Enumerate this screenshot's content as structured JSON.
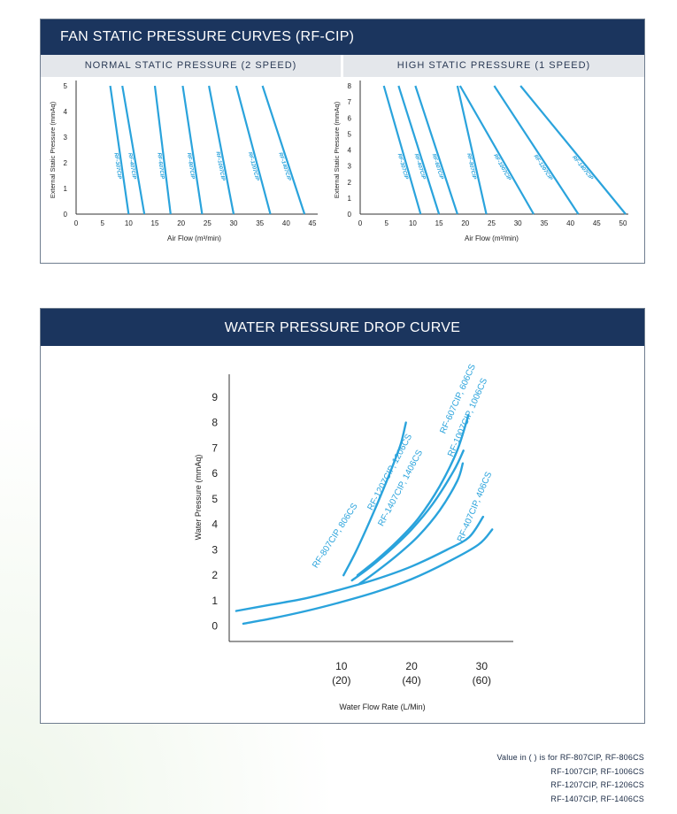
{
  "fan_panel": {
    "title": "FAN STATIC PRESSURE CURVES (RF-CIP)",
    "normal_subtitle": "NORMAL STATIC PRESSURE (2 SPEED)",
    "high_subtitle": "HIGH STATIC PRESSURE (1 SPEED)"
  },
  "water_panel": {
    "title": "WATER PRESSURE DROP CURVE"
  },
  "footnotes": [
    "Value in (   ) is for RF-807CIP, RF-806CS",
    "RF-1007CIP, RF-1006CS",
    "RF-1207CIP, RF-1206CS",
    "RF-1407CIP, RF-1406CS"
  ],
  "colors": {
    "curve": "#2aa3dc",
    "header": "#1b355e",
    "axis": "#333333"
  },
  "chart_data": [
    {
      "type": "line",
      "title": "NORMAL STATIC PRESSURE (2 SPEED)",
      "xlabel": "Air Flow (m³/min)",
      "ylabel": "External Static Pressure (mmAq)",
      "xlim": [
        0,
        45
      ],
      "ylim": [
        0,
        5
      ],
      "xticks": [
        "0",
        "5",
        "10",
        "15",
        "20",
        "25",
        "30",
        "35",
        "40",
        "45"
      ],
      "yticks": [
        "0",
        "1",
        "2",
        "3",
        "4",
        "5"
      ],
      "grid": false,
      "series": [
        {
          "name": "RF-307CIP",
          "x": [
            6.5,
            10
          ],
          "y": [
            5,
            0
          ]
        },
        {
          "name": "RF-407CIP",
          "x": [
            8.8,
            13
          ],
          "y": [
            5,
            0
          ]
        },
        {
          "name": "RF-607CIP",
          "x": [
            15,
            18
          ],
          "y": [
            5,
            0
          ]
        },
        {
          "name": "RF-807CIP",
          "x": [
            20.3,
            24
          ],
          "y": [
            5,
            0
          ]
        },
        {
          "name": "RF-1007CIP",
          "x": [
            25.3,
            30
          ],
          "y": [
            5,
            0
          ]
        },
        {
          "name": "RF-1207CIP",
          "x": [
            30.5,
            37
          ],
          "y": [
            5,
            0
          ]
        },
        {
          "name": "RF-1407CIP",
          "x": [
            35.5,
            43.5
          ],
          "y": [
            5,
            0
          ]
        }
      ]
    },
    {
      "type": "line",
      "title": "HIGH STATIC PRESSURE (1 SPEED)",
      "xlabel": "Air Flow (m³/min)",
      "ylabel": "External Static Pressure (mmAq)",
      "xlim": [
        0,
        50
      ],
      "ylim": [
        0,
        8
      ],
      "xticks": [
        "0",
        "5",
        "10",
        "15",
        "20",
        "25",
        "30",
        "35",
        "40",
        "45",
        "50"
      ],
      "yticks": [
        "0",
        "1",
        "2",
        "3",
        "4",
        "5",
        "6",
        "7",
        "8"
      ],
      "grid": false,
      "series": [
        {
          "name": "RF-307CIP",
          "x": [
            4.5,
            11.5
          ],
          "y": [
            8,
            0
          ]
        },
        {
          "name": "RF-407CIP",
          "x": [
            7.3,
            15
          ],
          "y": [
            8,
            0
          ]
        },
        {
          "name": "RF-607CIP",
          "x": [
            10.5,
            18.5
          ],
          "y": [
            8,
            0
          ]
        },
        {
          "name": "RF-807CIP",
          "x": [
            18.5,
            24
          ],
          "y": [
            8,
            0
          ]
        },
        {
          "name": "RF-1007CIP",
          "x": [
            19,
            33
          ],
          "y": [
            8,
            0
          ]
        },
        {
          "name": "RF-1207CIP",
          "x": [
            25.5,
            41.5
          ],
          "y": [
            8,
            0
          ]
        },
        {
          "name": "RF-1407CIP",
          "x": [
            30.5,
            50.5
          ],
          "y": [
            8,
            0
          ]
        }
      ]
    },
    {
      "type": "line",
      "title": "WATER PRESSURE DROP CURVE",
      "xlabel": "Water Flow Rate (L/Min)",
      "ylabel": "Water Pressure (mmAq)",
      "xlim": [
        -6,
        34.5
      ],
      "ylim": [
        -0.6,
        9.9
      ],
      "xticks": [
        {
          "value": 10,
          "label": "10",
          "sublabel": "(20)"
        },
        {
          "value": 20,
          "label": "20",
          "sublabel": "(40)"
        },
        {
          "value": 30,
          "label": "30",
          "sublabel": "(60)"
        }
      ],
      "yticks": [
        "0",
        "1",
        "2",
        "3",
        "4",
        "5",
        "6",
        "7",
        "8",
        "9"
      ],
      "grid": false,
      "series": [
        {
          "name": "RF-807CIP, 806CS",
          "x": [
            10.3,
            12,
            14,
            16,
            18,
            18.6,
            19.2
          ],
          "y": [
            2.0,
            2.9,
            4.1,
            5.4,
            6.8,
            7.3,
            8.0
          ]
        },
        {
          "name": "RF-1207CIP, 1206CS",
          "x": [
            12.3,
            15,
            18,
            21,
            24,
            26.5,
            28.1
          ],
          "y": [
            2.0,
            2.6,
            3.35,
            4.25,
            5.5,
            6.9,
            8.3
          ]
        },
        {
          "name": "RF-607CIP, 606CS",
          "x": [
            11.5,
            14,
            17,
            20,
            23,
            26,
            27.4
          ],
          "y": [
            1.8,
            2.3,
            3.0,
            3.8,
            4.8,
            6.1,
            6.9
          ]
        },
        {
          "name": "RF-1407CIP, 1406CS",
          "x": [
            12.5,
            15,
            18,
            21,
            24,
            26.5,
            27.3
          ],
          "y": [
            1.65,
            2.15,
            2.8,
            3.55,
            4.55,
            5.7,
            6.4
          ]
        },
        {
          "name": "RF-1007CIP, 1006CS",
          "x": [
            -5,
            0,
            5,
            10,
            15,
            20,
            25,
            28.2,
            30.2
          ],
          "y": [
            0.6,
            0.85,
            1.1,
            1.45,
            1.85,
            2.35,
            3.0,
            3.5,
            4.3
          ]
        },
        {
          "name": "RF-407CIP, 406CS",
          "x": [
            -4,
            0,
            5,
            10,
            15,
            20,
            25,
            29.5,
            31.5
          ],
          "y": [
            0.1,
            0.3,
            0.6,
            0.95,
            1.35,
            1.85,
            2.5,
            3.2,
            3.8
          ]
        }
      ]
    }
  ]
}
